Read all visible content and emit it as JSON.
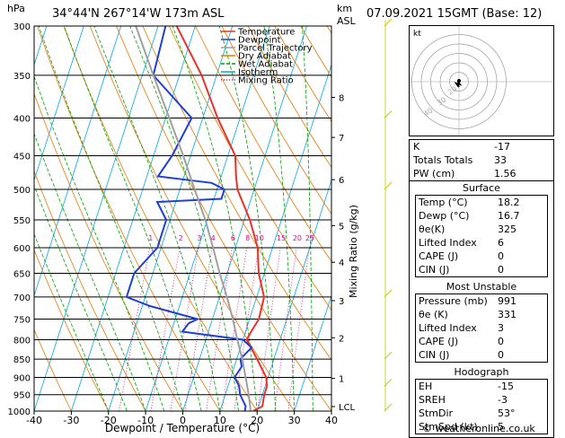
{
  "header": {
    "location": "34°44'N  267°14'W  173m  ASL",
    "datetime": "07.09.2021  15GMT  (Base: 12)",
    "hpa_label": "hPa",
    "km_label": "km",
    "asl_label": "ASL"
  },
  "chart_data": {
    "type": "skew-t",
    "xlabel": "Dewpoint / Temperature (°C)",
    "ylabel_right": "Mixing Ratio (g/kg)",
    "pressure_levels": [
      300,
      350,
      400,
      450,
      500,
      550,
      600,
      650,
      700,
      750,
      800,
      850,
      900,
      950,
      1000
    ],
    "temp_ticks": [
      -40,
      -30,
      -20,
      -10,
      0,
      10,
      20,
      30,
      40
    ],
    "xlim": [
      -40,
      40
    ],
    "ylim_hpa": [
      1000,
      300
    ],
    "km_ticks": [
      {
        "label": "8",
        "p": 375
      },
      {
        "label": "7",
        "p": 425
      },
      {
        "label": "6",
        "p": 485
      },
      {
        "label": "5",
        "p": 560
      },
      {
        "label": "4",
        "p": 628
      },
      {
        "label": "3",
        "p": 708
      },
      {
        "label": "2",
        "p": 795
      },
      {
        "label": "1",
        "p": 903
      },
      {
        "label": "LCL",
        "p": 986
      }
    ],
    "mixing_ratio_labels": [
      "1",
      "2",
      "3",
      "4",
      "6",
      "8",
      "10",
      "15",
      "20",
      "25"
    ],
    "mixing_ratio_label_p": 590,
    "legend": [
      {
        "name": "Temperature",
        "color": "#e8322b"
      },
      {
        "name": "Dewpoint",
        "color": "#1f3fd8"
      },
      {
        "name": "Parcel Trajectory",
        "color": "#a0a0a0"
      },
      {
        "name": "Dry Adiabat",
        "color": "#e07a00"
      },
      {
        "name": "Wet Adiabat",
        "color": "#00a000"
      },
      {
        "name": "Isotherm",
        "color": "#00a8e0"
      },
      {
        "name": "Mixing Ratio",
        "color": "#d01080"
      }
    ],
    "series": [
      {
        "name": "Temperature",
        "points": [
          [
            1000,
            19
          ],
          [
            985,
            21
          ],
          [
            950,
            20.5
          ],
          [
            925,
            20.5
          ],
          [
            900,
            19.5
          ],
          [
            850,
            15.5
          ],
          [
            800,
            11
          ],
          [
            780,
            11.5
          ],
          [
            750,
            12.5
          ],
          [
            700,
            12
          ],
          [
            650,
            8.5
          ],
          [
            600,
            6
          ],
          [
            550,
            1.5
          ],
          [
            500,
            -4.5
          ],
          [
            480,
            -6
          ],
          [
            450,
            -8
          ],
          [
            400,
            -16
          ],
          [
            350,
            -24
          ],
          [
            300,
            -35
          ]
        ]
      },
      {
        "name": "Dewpoint",
        "points": [
          [
            1000,
            16.7
          ],
          [
            985,
            16.5
          ],
          [
            950,
            14
          ],
          [
            925,
            13
          ],
          [
            900,
            11
          ],
          [
            870,
            12
          ],
          [
            850,
            11
          ],
          [
            820,
            13
          ],
          [
            800,
            10
          ],
          [
            780,
            -7
          ],
          [
            760,
            -6
          ],
          [
            750,
            -4
          ],
          [
            720,
            -18
          ],
          [
            700,
            -25
          ],
          [
            650,
            -25
          ],
          [
            600,
            -21
          ],
          [
            550,
            -21
          ],
          [
            520,
            -25
          ],
          [
            515,
            -8
          ],
          [
            500,
            -8
          ],
          [
            490,
            -12
          ],
          [
            480,
            -27
          ],
          [
            450,
            -25
          ],
          [
            400,
            -23
          ],
          [
            350,
            -37
          ],
          [
            300,
            -38
          ]
        ]
      },
      {
        "name": "Parcel Trajectory",
        "points": [
          [
            1000,
            18.2
          ],
          [
            985,
            17.7
          ],
          [
            950,
            16.3
          ],
          [
            900,
            14
          ],
          [
            850,
            11.5
          ],
          [
            800,
            8.5
          ],
          [
            750,
            5.5
          ],
          [
            700,
            2
          ],
          [
            650,
            -2
          ],
          [
            600,
            -6
          ],
          [
            550,
            -10.5
          ],
          [
            500,
            -16
          ],
          [
            450,
            -22
          ],
          [
            400,
            -29
          ],
          [
            350,
            -37
          ],
          [
            300,
            -46
          ]
        ]
      }
    ]
  },
  "hodograph": {
    "label": "kt",
    "ring_labels": [
      "40",
      "30",
      "20"
    ]
  },
  "indices": [
    {
      "label": "K",
      "value": "-17"
    },
    {
      "label": "Totals Totals",
      "value": "33"
    },
    {
      "label": "PW (cm)",
      "value": "1.56"
    }
  ],
  "surface": {
    "title": "Surface",
    "rows": [
      {
        "label": "Temp (°C)",
        "value": "18.2"
      },
      {
        "label": "Dewp (°C)",
        "value": "16.7"
      },
      {
        "label": "θe(K)",
        "value": "325"
      },
      {
        "label": "Lifted Index",
        "value": "6"
      },
      {
        "label": "CAPE (J)",
        "value": "0"
      },
      {
        "label": "CIN (J)",
        "value": "0"
      }
    ]
  },
  "most_unstable": {
    "title": "Most Unstable",
    "rows": [
      {
        "label": "Pressure (mb)",
        "value": "991"
      },
      {
        "label": "θe (K)",
        "value": "331"
      },
      {
        "label": "Lifted Index",
        "value": "3"
      },
      {
        "label": "CAPE (J)",
        "value": "0"
      },
      {
        "label": "CIN (J)",
        "value": "0"
      }
    ]
  },
  "hodograph_table": {
    "title": "Hodograph",
    "rows": [
      {
        "label": "EH",
        "value": "-15"
      },
      {
        "label": "SREH",
        "value": "-3"
      },
      {
        "label": "StmDir",
        "value": "53°"
      },
      {
        "label": "StmSpd (kt)",
        "value": "5"
      }
    ]
  },
  "footer": {
    "credit": "© weatheronline.co.uk"
  }
}
